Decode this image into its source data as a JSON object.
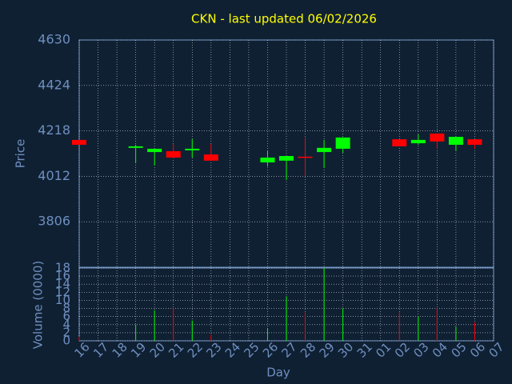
{
  "chart_data": {
    "type": "candlestick",
    "title": "CKN - last updated 06/02/2026",
    "ylabel": "Price",
    "xlabel": "Day",
    "categories": [
      "16",
      "17",
      "18",
      "19",
      "20",
      "21",
      "22",
      "23",
      "24",
      "25",
      "26",
      "27",
      "28",
      "29",
      "30",
      "31",
      "01",
      "02",
      "03",
      "04",
      "05",
      "06",
      "07"
    ],
    "open": [
      4177,
      null,
      null,
      4141,
      4122,
      4126,
      4130,
      4111,
      null,
      null,
      4075,
      4083,
      4101,
      4122,
      4137,
      null,
      null,
      4180,
      4162,
      4206,
      4155,
      4180,
      null
    ],
    "high": [
      4177,
      null,
      null,
      4155,
      4137,
      4159,
      4180,
      4159,
      null,
      null,
      4126,
      4104,
      4188,
      4177,
      4188,
      null,
      null,
      4180,
      4202,
      4206,
      4191,
      4180,
      null
    ],
    "low": [
      4155,
      null,
      null,
      4071,
      4061,
      4093,
      4097,
      4083,
      null,
      null,
      4057,
      3995,
      4013,
      4050,
      4119,
      null,
      null,
      4148,
      4155,
      4137,
      4126,
      4137,
      null
    ],
    "close": [
      4155,
      null,
      null,
      4148,
      4137,
      4097,
      4137,
      4083,
      null,
      null,
      4097,
      4104,
      4097,
      4141,
      4188,
      null,
      null,
      4148,
      4177,
      4170,
      4191,
      4155,
      null
    ],
    "up_color": "#00ff00",
    "down_color": "#ff0000",
    "ylim": [
      3600,
      4630
    ],
    "yticks": [
      3806,
      4012,
      4218,
      4424,
      4630
    ],
    "grid": true,
    "volume": {
      "ylabel": "Volume (0000)",
      "values": [
        1,
        null,
        null,
        4,
        7.5,
        8,
        5,
        1.5,
        null,
        null,
        3,
        11,
        7,
        18,
        8,
        null,
        null,
        7,
        6,
        8,
        3.5,
        4.5,
        null
      ],
      "ylim": [
        0,
        18
      ],
      "yticks": [
        0,
        2,
        4,
        6,
        8,
        10,
        12,
        14,
        16,
        18
      ]
    }
  }
}
